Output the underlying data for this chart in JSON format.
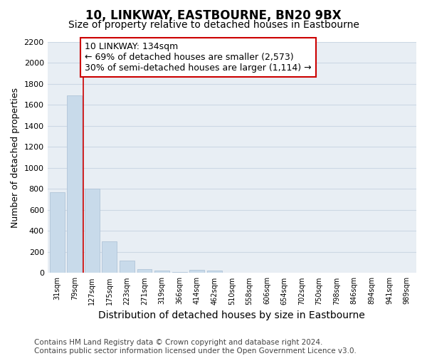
{
  "title": "10, LINKWAY, EASTBOURNE, BN20 9BX",
  "subtitle": "Size of property relative to detached houses in Eastbourne",
  "xlabel": "Distribution of detached houses by size in Eastbourne",
  "ylabel": "Number of detached properties",
  "categories": [
    "31sqm",
    "79sqm",
    "127sqm",
    "175sqm",
    "223sqm",
    "271sqm",
    "319sqm",
    "366sqm",
    "414sqm",
    "462sqm",
    "510sqm",
    "558sqm",
    "606sqm",
    "654sqm",
    "702sqm",
    "750sqm",
    "798sqm",
    "846sqm",
    "894sqm",
    "941sqm",
    "989sqm"
  ],
  "values": [
    770,
    1690,
    800,
    300,
    115,
    40,
    25,
    10,
    30,
    20,
    0,
    0,
    0,
    0,
    0,
    0,
    0,
    0,
    0,
    0,
    0
  ],
  "bar_color": "#c8daea",
  "bar_edge_color": "#b0c4d8",
  "reference_line_x": 2.0,
  "reference_line_color": "#cc0000",
  "annotation_text": "10 LINKWAY: 134sqm\n← 69% of detached houses are smaller (2,573)\n30% of semi-detached houses are larger (1,114) →",
  "annotation_box_color": "#ffffff",
  "annotation_box_edge_color": "#cc0000",
  "ylim": [
    0,
    2200
  ],
  "yticks": [
    0,
    200,
    400,
    600,
    800,
    1000,
    1200,
    1400,
    1600,
    1800,
    2000,
    2200
  ],
  "grid_color": "#ccd8e4",
  "background_color": "#e8eef4",
  "footer_text": "Contains HM Land Registry data © Crown copyright and database right 2024.\nContains public sector information licensed under the Open Government Licence v3.0.",
  "title_fontsize": 12,
  "subtitle_fontsize": 10,
  "xlabel_fontsize": 10,
  "ylabel_fontsize": 9,
  "annotation_fontsize": 9,
  "footer_fontsize": 7.5
}
